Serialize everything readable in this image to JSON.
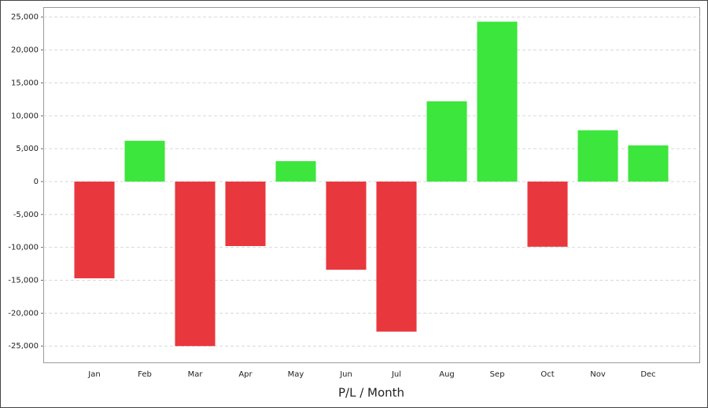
{
  "chart_data": {
    "type": "bar",
    "x_label": "P/L / Month",
    "categories": [
      "Jan",
      "Feb",
      "Mar",
      "Apr",
      "May",
      "Jun",
      "Jul",
      "Aug",
      "Sep",
      "Oct",
      "Nov",
      "Dec"
    ],
    "values": [
      -14700,
      6200,
      -25000,
      -9800,
      3100,
      -13400,
      -22800,
      12200,
      24300,
      -9900,
      7800,
      5500
    ],
    "positive_color": "#3ce63c",
    "negative_color": "#e8383d",
    "ylim": [
      -27600,
      26400
    ],
    "yticks": [
      {
        "value": -25000,
        "label": "-25,000"
      },
      {
        "value": -20000,
        "label": "-20,000"
      },
      {
        "value": -15000,
        "label": "-15,000"
      },
      {
        "value": -10000,
        "label": "-10,000"
      },
      {
        "value": -5000,
        "label": "-5,000"
      },
      0,
      {
        "value": 5000,
        "label": "5,000"
      },
      {
        "value": 10000,
        "label": "10,000"
      },
      {
        "value": 15000,
        "label": "15,000"
      },
      {
        "value": 20000,
        "label": "20,000"
      },
      {
        "value": 25000,
        "label": "25,000"
      }
    ],
    "grid": true
  }
}
